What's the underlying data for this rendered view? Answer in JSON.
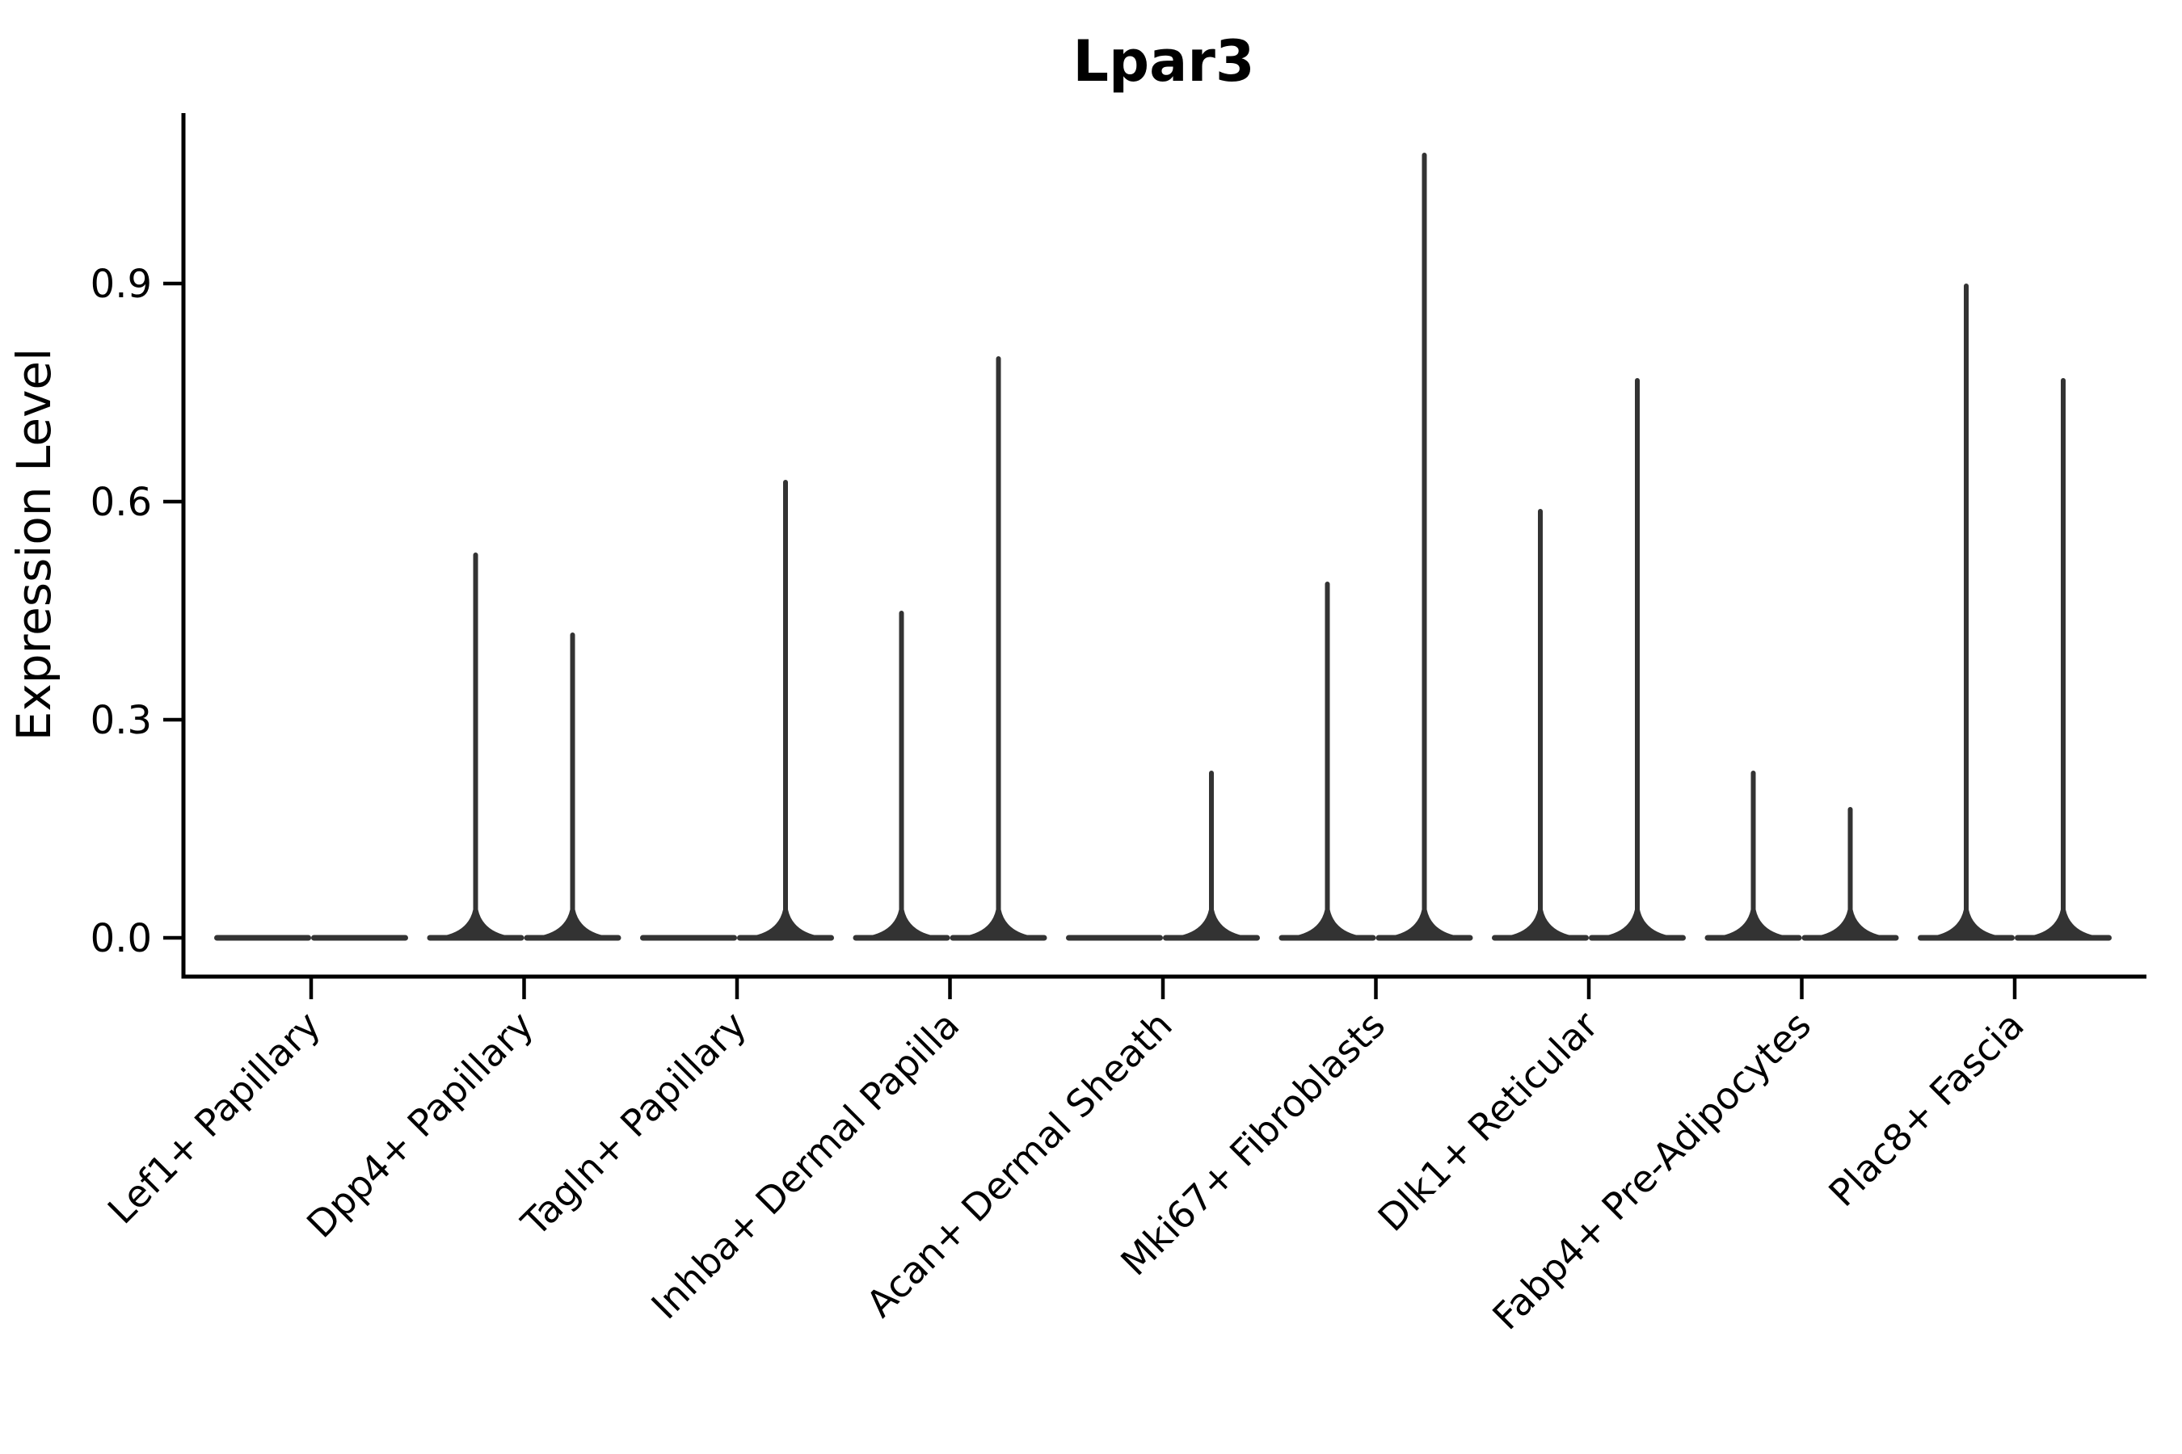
{
  "title": "Lpar3",
  "ylabel": "Expression Level",
  "chart_data": {
    "type": "violin",
    "title": "Lpar3",
    "xlabel": "",
    "ylabel": "Expression Level",
    "grid": false,
    "legend": "none",
    "categories": [
      "Lef1+ Papillary",
      "Dpp4+ Papillary",
      "Tagln+ Papillary",
      "Inhba+ Dermal Papilla",
      "Acan+ Dermal Sheath",
      "Mki67+ Fibroblasts",
      "Dlk1+ Reticular",
      "Fabp4+ Pre-Adipocytes",
      "Plac8+ Fascia"
    ],
    "series": [
      {
        "name": "left-violin",
        "max_expression": [
          0,
          0.53,
          0,
          0.45,
          0,
          0.49,
          0.59,
          0.23,
          0.9
        ]
      },
      {
        "name": "right-violin",
        "max_expression": [
          0,
          0.42,
          0.63,
          0.8,
          0.23,
          1.08,
          0.77,
          0.18,
          0.77
        ]
      }
    ],
    "yticks": [
      0.0,
      0.3,
      0.6,
      0.9
    ],
    "ytick_labels": [
      "0.0",
      "0.3",
      "0.6",
      "0.9"
    ],
    "ylim": [
      -0.053,
      1.134
    ],
    "violin_color": "#333333",
    "axis_color": "#000000"
  }
}
